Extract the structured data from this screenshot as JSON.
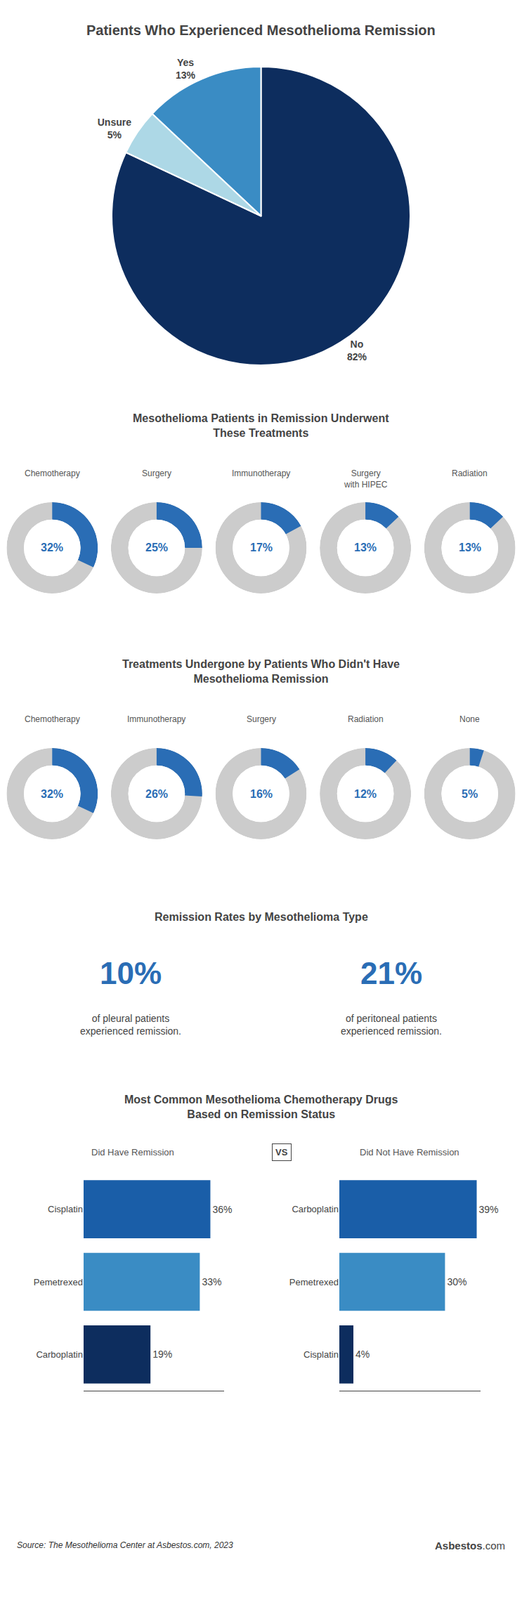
{
  "chart_data": [
    {
      "type": "pie",
      "title": "Patients Who Experienced Mesothelioma Remission",
      "categories": [
        "No",
        "Yes",
        "Unsure"
      ],
      "values": [
        82,
        13,
        5
      ],
      "value_labels": [
        "82%",
        "13%",
        "5%"
      ],
      "colors": [
        "#0d2d5e",
        "#3a8cc4",
        "#add8e6"
      ],
      "data_labels": true
    },
    {
      "type": "donut",
      "title": "Mesothelioma Patients in Remission Underwent\nThese Treatments",
      "categories": [
        "Chemotherapy",
        "Surgery",
        "Immunotherapy",
        "Surgery\nwith HIPEC",
        "Radiation"
      ],
      "values": [
        32,
        25,
        17,
        13,
        13
      ],
      "value_labels": [
        "32%",
        "25%",
        "17%",
        "13%",
        "13%"
      ],
      "color": "#2a6db5",
      "data_labels": true
    },
    {
      "type": "donut",
      "title": "Treatments Undergone by Patients Who Didn't Have\nMesothelioma Remission",
      "categories": [
        "Chemotherapy",
        "Immunotherapy",
        "Surgery",
        "Radiation",
        "None"
      ],
      "values": [
        32,
        26,
        16,
        12,
        5
      ],
      "value_labels": [
        "32%",
        "26%",
        "16%",
        "12%",
        "5%"
      ],
      "color": "#2a6db5",
      "data_labels": true
    },
    {
      "type": "stat",
      "title": "Remission Rates by Mesothelioma Type",
      "categories": [
        "of pleural patients\nexperienced remission.",
        "of peritoneal patients\nexperienced remission."
      ],
      "values": [
        10,
        21
      ],
      "value_labels": [
        "10%",
        "21%"
      ],
      "color": "#2a6db5",
      "data_labels": true
    },
    {
      "type": "bar",
      "orientation": "horizontal",
      "title": "Most Common Mesothelioma Chemotherapy Drugs\nBased on Remission Status",
      "series": [
        {
          "name": "Did Have Remission",
          "categories": [
            "Cisplatin",
            "Pemetrexed",
            "Carboplatin"
          ],
          "values": [
            36,
            33,
            19
          ],
          "value_labels": [
            "36%",
            "33%",
            "19%"
          ]
        },
        {
          "name": "Did Not Have Remission",
          "categories": [
            "Carboplatin",
            "Pemetrexed",
            "Cisplatin"
          ],
          "values": [
            39,
            30,
            4
          ],
          "value_labels": [
            "39%",
            "30%",
            "4%"
          ]
        }
      ],
      "colors": [
        "#1a5ea8",
        "#3a8cc4",
        "#0d2d5e"
      ],
      "xlim": [
        0,
        40
      ],
      "tick_labels": "y",
      "grid": false,
      "data_labels": true,
      "annotations": [
        "VS",
        "Source: The Mesothelioma Center at Asbestos.com, 2023",
        "Asbestos",
        ".com"
      ]
    }
  ]
}
